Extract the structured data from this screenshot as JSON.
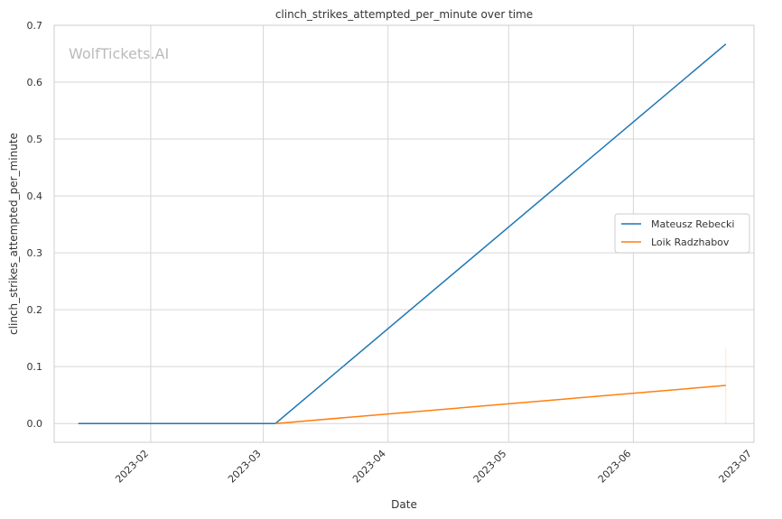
{
  "chart_data": {
    "type": "line",
    "title": "clinch_strikes_attempted_per_minute over time",
    "xlabel": "Date",
    "ylabel": "clinch_strikes_attempted_per_minute",
    "watermark": "WolfTickets.AI",
    "xlim": [
      "2023-01-08",
      "2023-07-01"
    ],
    "ylim": [
      -0.033,
      0.7
    ],
    "x_ticks": [
      "2023-02-01",
      "2023-03-01",
      "2023-04-01",
      "2023-05-01",
      "2023-06-01",
      "2023-07-01"
    ],
    "x_tick_labels": [
      "2023-02",
      "2023-03",
      "2023-04",
      "2023-05",
      "2023-06",
      "2023-07"
    ],
    "y_ticks": [
      0.0,
      0.1,
      0.2,
      0.3,
      0.4,
      0.5,
      0.6,
      0.7
    ],
    "y_tick_labels": [
      "0.0",
      "0.1",
      "0.2",
      "0.3",
      "0.4",
      "0.5",
      "0.6",
      "0.7"
    ],
    "grid": true,
    "legend_position": "center-right",
    "series": [
      {
        "name": "Mateusz Rebecki",
        "color": "#1f77b4",
        "x": [
          "2023-01-14",
          "2023-03-04",
          "2023-06-24"
        ],
        "y": [
          0.0,
          0.0,
          0.667
        ]
      },
      {
        "name": "Loik Radzhabov",
        "color": "#ff7f0e",
        "x": [
          "2023-03-04",
          "2023-06-24"
        ],
        "y": [
          0.0,
          0.067
        ],
        "band": {
          "x": "2023-06-24",
          "low": 0.0,
          "high": 0.133
        }
      }
    ]
  }
}
